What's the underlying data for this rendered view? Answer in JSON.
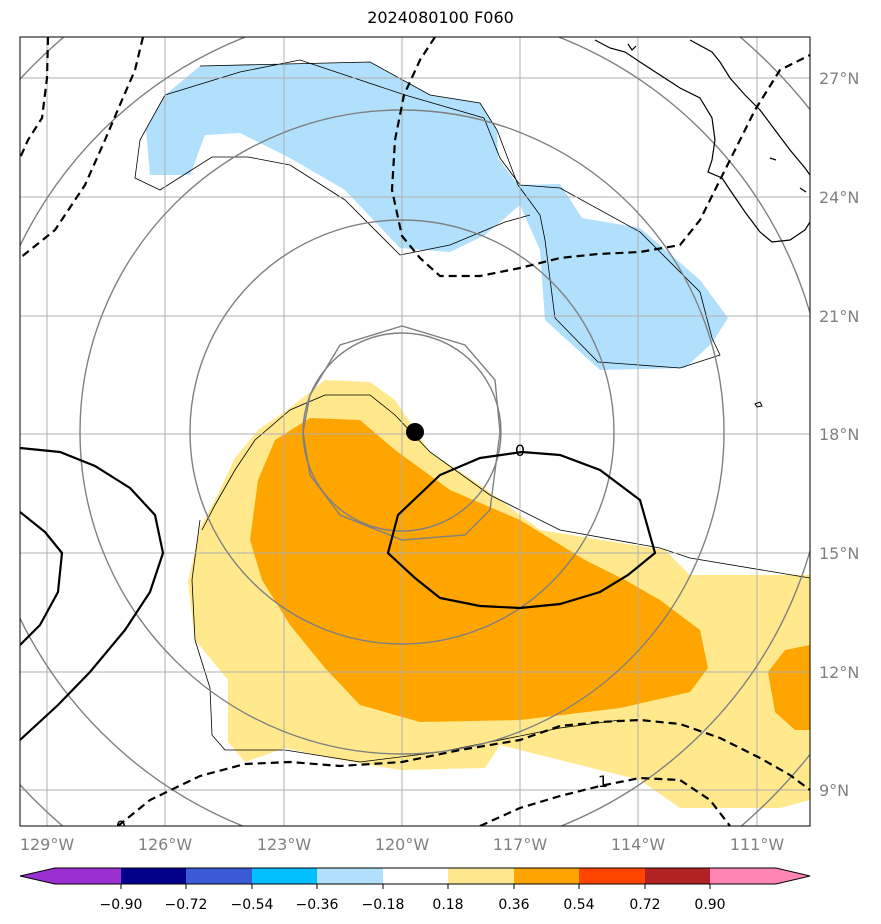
{
  "title": "2024080100 F060",
  "map": {
    "lon_ticks": [
      "129°W",
      "126°W",
      "123°W",
      "120°W",
      "117°W",
      "114°W",
      "111°W"
    ],
    "lat_ticks": [
      "27°N",
      "24°N",
      "21°N",
      "18°N",
      "15°N",
      "12°N",
      "9°N"
    ],
    "contour_labels": [
      "0",
      "1",
      "0"
    ],
    "center_marker": "storm-center"
  },
  "colorbar": {
    "ticks": [
      "−0.90",
      "−0.72",
      "−0.54",
      "−0.36",
      "−0.18",
      "0.18",
      "0.36",
      "0.54",
      "0.72",
      "0.90"
    ],
    "colors": [
      "#9a2fd2",
      "#00008b",
      "#3b5bd6",
      "#00bfff",
      "#b0e0fb",
      "#ffffff",
      "#ffe98c",
      "#ffa500",
      "#ff4500",
      "#b22222",
      "#ff85b4"
    ]
  }
}
